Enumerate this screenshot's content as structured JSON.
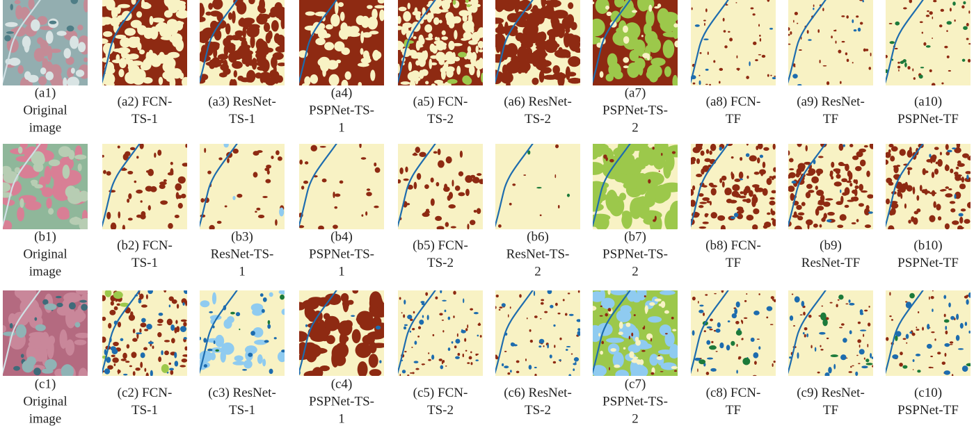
{
  "rows": [
    [
      {
        "caption": [
          "(a1)",
          "Original",
          "image"
        ]
      },
      {
        "caption": [
          "(a2) FCN-",
          "TS-1"
        ]
      },
      {
        "caption": [
          "(a3) ResNet-",
          "TS-1"
        ]
      },
      {
        "caption": [
          "(a4)",
          "PSPNet-TS-",
          "1"
        ]
      },
      {
        "caption": [
          "(a5) FCN-",
          "TS-2"
        ]
      },
      {
        "caption": [
          "(a6) ResNet-",
          "TS-2"
        ]
      },
      {
        "caption": [
          "(a7)",
          "PSPNet-TS-",
          "2"
        ]
      },
      {
        "caption": [
          "(a8) FCN-",
          "TF"
        ]
      },
      {
        "caption": [
          "(a9) ResNet-",
          "TF"
        ]
      },
      {
        "caption": [
          "(a10)",
          "PSPNet-TF"
        ]
      }
    ],
    [
      {
        "caption": [
          "(b1)",
          "Original",
          "image"
        ]
      },
      {
        "caption": [
          "(b2) FCN-",
          "TS-1"
        ]
      },
      {
        "caption": [
          "(b3)",
          "ResNet-TS-",
          "1"
        ]
      },
      {
        "caption": [
          "(b4)",
          "PSPNet-TS-",
          "1"
        ]
      },
      {
        "caption": [
          "(b5) FCN-",
          "TS-2"
        ]
      },
      {
        "caption": [
          "(b6)",
          "ResNet-TS-",
          "2"
        ]
      },
      {
        "caption": [
          "(b7)",
          "PSPNet-TS-",
          "2"
        ]
      },
      {
        "caption": [
          "(b8) FCN-",
          "TF"
        ]
      },
      {
        "caption": [
          "(b9)",
          "ResNet-TF"
        ]
      },
      {
        "caption": [
          "(b10)",
          "PSPNet-TF"
        ]
      }
    ],
    [
      {
        "caption": [
          "(c1)",
          "Original",
          "image"
        ]
      },
      {
        "caption": [
          "(c2) FCN-",
          "TS-1"
        ]
      },
      {
        "caption": [
          "(c3) ResNet-",
          "TS-1"
        ]
      },
      {
        "caption": [
          "(c4)",
          "PSPNet-TS-",
          "1"
        ]
      },
      {
        "caption": [
          "(c5) FCN-",
          "TS-2"
        ]
      },
      {
        "caption": [
          "(c6) ResNet-",
          "TS-2"
        ]
      },
      {
        "caption": [
          "(c7)",
          "PSPNet-TS-",
          "2"
        ]
      },
      {
        "caption": [
          "(c8) FCN-",
          "TF"
        ]
      },
      {
        "caption": [
          "(c9) ResNet-",
          "TF"
        ]
      },
      {
        "caption": [
          "(c10)",
          "PSPNet-TF"
        ]
      }
    ]
  ]
}
